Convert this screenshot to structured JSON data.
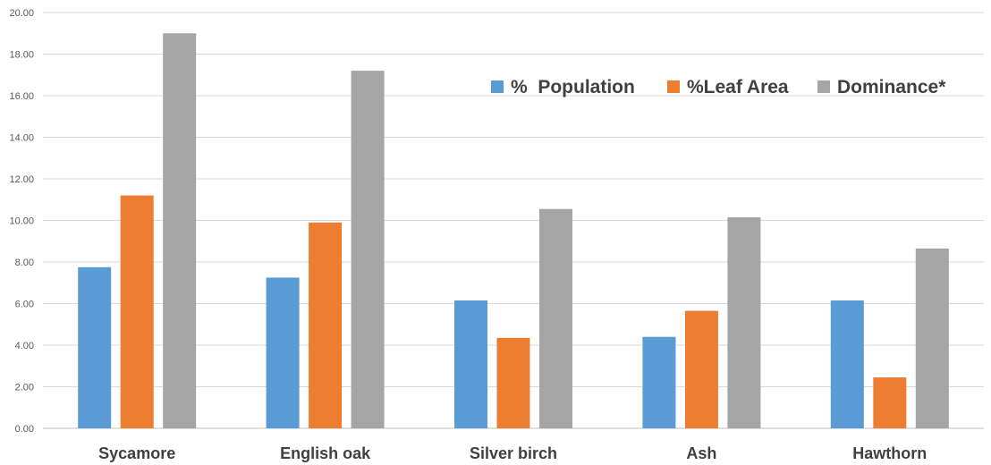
{
  "chart_data": {
    "type": "bar",
    "categories": [
      "Sycamore",
      "English oak",
      "Silver birch",
      "Ash",
      "Hawthorn"
    ],
    "series": [
      {
        "name": "%  Population",
        "color": "#5b9bd5",
        "values": [
          7.75,
          7.25,
          6.15,
          4.4,
          6.15
        ]
      },
      {
        "name": "%Leaf Area",
        "color": "#ed7d31",
        "values": [
          11.2,
          9.9,
          4.35,
          5.65,
          2.45
        ]
      },
      {
        "name": "Dominance*",
        "color": "#a5a5a5",
        "values": [
          19.0,
          17.2,
          10.55,
          10.15,
          8.65
        ]
      }
    ],
    "ylim": [
      0,
      20
    ],
    "yticks": [
      "0.00",
      "2.00",
      "4.00",
      "6.00",
      "8.00",
      "10.00",
      "12.00",
      "14.00",
      "16.00",
      "18.00",
      "20.00"
    ],
    "grid": true,
    "legend_position": "top-right inside plot"
  }
}
